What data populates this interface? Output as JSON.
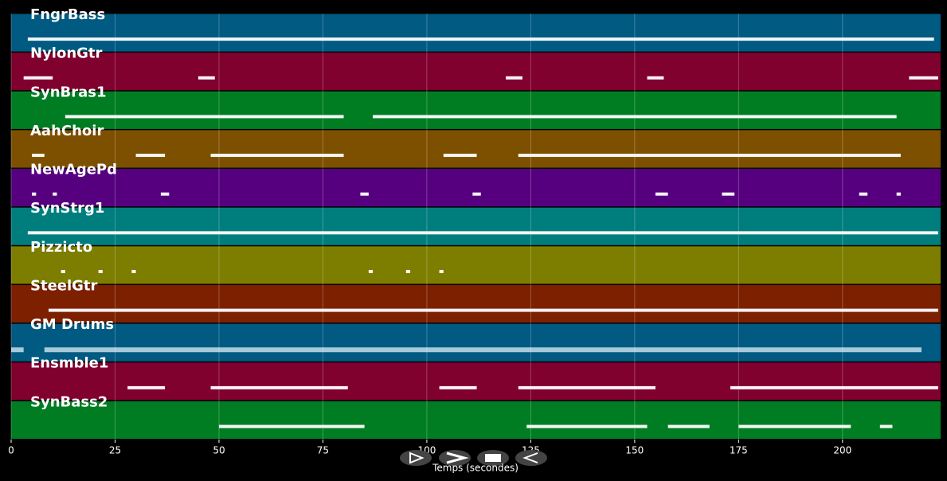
{
  "chart_data": {
    "type": "pianoroll",
    "xlabel": "Temps (secondes)",
    "xlim": [
      0,
      223.6
    ],
    "xticks": [
      0,
      25,
      50,
      75,
      100,
      125,
      150,
      175,
      200
    ],
    "grid": true,
    "tracks": [
      {
        "name": "FngrBass",
        "color": "#005a82",
        "notes": [
          [
            4,
            222
          ]
        ]
      },
      {
        "name": "NylonGtr",
        "color": "#80002e",
        "notes": [
          [
            3,
            10
          ],
          [
            45,
            49
          ],
          [
            119,
            123
          ],
          [
            153,
            157
          ],
          [
            216,
            223
          ]
        ]
      },
      {
        "name": "SynBras1",
        "color": "#007d22",
        "notes": [
          [
            13,
            80
          ],
          [
            87,
            213
          ]
        ]
      },
      {
        "name": "AahChoir",
        "color": "#7d5000",
        "notes": [
          [
            5,
            8
          ],
          [
            30,
            37
          ],
          [
            48,
            80
          ],
          [
            104,
            112
          ],
          [
            122,
            214
          ]
        ]
      },
      {
        "name": "NewAgePd",
        "color": "#560080",
        "notes": [
          [
            5,
            6
          ],
          [
            10,
            11
          ],
          [
            36,
            38
          ],
          [
            84,
            86
          ],
          [
            111,
            113
          ],
          [
            155,
            158
          ],
          [
            171,
            174
          ],
          [
            204,
            206
          ],
          [
            213,
            214
          ]
        ]
      },
      {
        "name": "SynStrg1",
        "color": "#007d7d",
        "notes": [
          [
            4,
            223
          ]
        ]
      },
      {
        "name": "Pizzicto",
        "color": "#7d7d00",
        "notes": [
          [
            12,
            13
          ],
          [
            21,
            22
          ],
          [
            29,
            30
          ],
          [
            86,
            87
          ],
          [
            95,
            96
          ],
          [
            103,
            104
          ]
        ]
      },
      {
        "name": "SteelGtr",
        "color": "#7d2000",
        "notes": [
          [
            9,
            223
          ]
        ]
      },
      {
        "name": "GM Drums",
        "color": "#005a82",
        "notes": [
          [
            0,
            3
          ],
          [
            8,
            219
          ]
        ]
      },
      {
        "name": "Ensmble1",
        "color": "#80002e",
        "notes": [
          [
            28,
            37
          ],
          [
            48,
            81
          ],
          [
            103,
            112
          ],
          [
            122,
            155
          ],
          [
            173,
            223
          ]
        ]
      },
      {
        "name": "SynBass2",
        "color": "#007d22",
        "notes": [
          [
            50,
            85
          ],
          [
            124,
            153
          ],
          [
            158,
            168
          ],
          [
            175,
            202
          ],
          [
            209,
            212
          ]
        ]
      }
    ]
  }
}
